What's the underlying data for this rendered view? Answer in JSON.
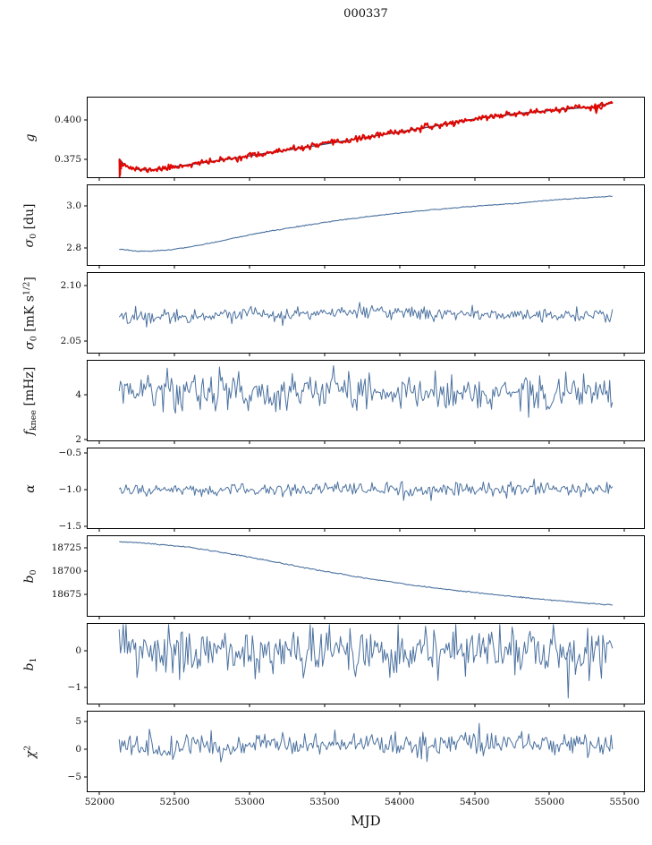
{
  "title": "000337",
  "xlabel": "MJD",
  "colors": {
    "line_blue": "#4c72a0",
    "fit_navy": "#2e4a6e",
    "overlay_red": "#e10600",
    "axis": "#000000"
  },
  "chart_data": {
    "type": "line",
    "title": "000337",
    "xlabel": "MJD",
    "grid": false,
    "legend": "none",
    "xlim": [
      51920,
      55630
    ],
    "x_data_range": [
      52130,
      55420
    ],
    "xticks": [
      52000,
      52500,
      53000,
      53500,
      54000,
      54500,
      55000,
      55500
    ],
    "xtick_labels": [
      "52000",
      "52500",
      "53000",
      "53500",
      "54000",
      "54500",
      "55000",
      "55500"
    ],
    "panels": [
      {
        "id": "g",
        "ylabel_text": "g",
        "ylabel_segments": [
          {
            "t": "g",
            "it": true
          }
        ],
        "ylim": [
          0.364,
          0.414
        ],
        "yticks": [
          {
            "v": 0.4,
            "label": "0.400"
          },
          {
            "v": 0.375,
            "label": "0.375"
          }
        ],
        "series": [
          {
            "name": "g-fit",
            "type": "smooth",
            "color": "#2e4a6e",
            "width": 1.4,
            "points": [
              [
                52130,
                0.3757
              ],
              [
                52155,
                0.3728
              ],
              [
                52185,
                0.3707
              ],
              [
                52230,
                0.3692
              ],
              [
                52290,
                0.3686
              ],
              [
                52360,
                0.3688
              ],
              [
                52440,
                0.3697
              ],
              [
                52530,
                0.371
              ],
              [
                52650,
                0.3726
              ],
              [
                52800,
                0.3746
              ],
              [
                52950,
                0.3767
              ],
              [
                53100,
                0.3789
              ],
              [
                53250,
                0.381
              ],
              [
                53400,
                0.3832
              ],
              [
                53550,
                0.3855
              ],
              [
                53700,
                0.3878
              ],
              [
                53850,
                0.3902
              ],
              [
                54000,
                0.3925
              ],
              [
                54150,
                0.3948
              ],
              [
                54300,
                0.3972
              ],
              [
                54450,
                0.3998
              ],
              [
                54600,
                0.402
              ],
              [
                54750,
                0.4036
              ],
              [
                54900,
                0.4049
              ],
              [
                55050,
                0.4063
              ],
              [
                55200,
                0.4075
              ],
              [
                55300,
                0.4082
              ],
              [
                55420,
                0.4107
              ]
            ]
          },
          {
            "name": "g-data",
            "type": "noisy",
            "color": "#e10600",
            "width": 2,
            "seed": 11,
            "n": 430,
            "std": 0.0009,
            "clamp": [
              0.3632,
              0.4125
            ],
            "trend": [
              [
                52130,
                0.3757
              ],
              [
                52155,
                0.3728
              ],
              [
                52185,
                0.3707
              ],
              [
                52230,
                0.3692
              ],
              [
                52290,
                0.3686
              ],
              [
                52360,
                0.3688
              ],
              [
                52440,
                0.3697
              ],
              [
                52530,
                0.371
              ],
              [
                52650,
                0.3726
              ],
              [
                52800,
                0.3746
              ],
              [
                52950,
                0.3767
              ],
              [
                53100,
                0.3789
              ],
              [
                53250,
                0.381
              ],
              [
                53400,
                0.3832
              ],
              [
                53550,
                0.3855
              ],
              [
                53700,
                0.3878
              ],
              [
                53850,
                0.3902
              ],
              [
                54000,
                0.3925
              ],
              [
                54150,
                0.3948
              ],
              [
                54300,
                0.3972
              ],
              [
                54450,
                0.3998
              ],
              [
                54600,
                0.402
              ],
              [
                54750,
                0.4036
              ],
              [
                54900,
                0.4049
              ],
              [
                55050,
                0.4063
              ],
              [
                55200,
                0.4075
              ],
              [
                55300,
                0.4082
              ],
              [
                55420,
                0.4107
              ]
            ]
          },
          {
            "name": "g-start-spike",
            "type": "spike",
            "color": "#e10600",
            "width": 1.8,
            "points": [
              [
                52131,
                0.3755
              ],
              [
                52133,
                0.3638
              ],
              [
                52135,
                0.3748
              ],
              [
                52137,
                0.3655
              ],
              [
                52140,
                0.3735
              ],
              [
                52144,
                0.369
              ]
            ]
          },
          {
            "name": "g-end-dip",
            "type": "spike",
            "color": "#e10600",
            "width": 1.8,
            "points": [
              [
                55300,
                0.4085
              ],
              [
                55312,
                0.4042
              ],
              [
                55324,
                0.4087
              ],
              [
                55345,
                0.4068
              ],
              [
                55360,
                0.4095
              ]
            ]
          }
        ]
      },
      {
        "id": "sigma0_du",
        "ylabel_text": "σ0 [du]",
        "ylabel_segments": [
          {
            "t": "σ",
            "it": true
          },
          {
            "t": "0",
            "sub": true
          },
          {
            "t": " [du]"
          }
        ],
        "ylim": [
          2.72,
          3.1
        ],
        "yticks": [
          {
            "v": 3.0,
            "label": "3.0"
          },
          {
            "v": 2.8,
            "label": "2.8"
          }
        ],
        "series": [
          {
            "name": "sigma0-du",
            "type": "noisy",
            "color": "#4c72a0",
            "width": 1.1,
            "seed": 21,
            "n": 400,
            "std": 0.0012,
            "clamp": [
              2.73,
              3.09
            ],
            "trend": [
              [
                52130,
                2.796
              ],
              [
                52250,
                2.786
              ],
              [
                52350,
                2.785
              ],
              [
                52500,
                2.795
              ],
              [
                52650,
                2.812
              ],
              [
                52800,
                2.833
              ],
              [
                53000,
                2.864
              ],
              [
                53200,
                2.889
              ],
              [
                53400,
                2.912
              ],
              [
                53600,
                2.933
              ],
              [
                53800,
                2.952
              ],
              [
                54000,
                2.968
              ],
              [
                54200,
                2.982
              ],
              [
                54400,
                2.995
              ],
              [
                54600,
                3.005
              ],
              [
                54800,
                3.015
              ],
              [
                55000,
                3.029
              ],
              [
                55200,
                3.038
              ],
              [
                55420,
                3.048
              ]
            ]
          }
        ]
      },
      {
        "id": "sigma0_mk",
        "ylabel_text": "σ0 [mK s1/2]",
        "ylabel_segments": [
          {
            "t": "σ",
            "it": true
          },
          {
            "t": "0",
            "sub": true
          },
          {
            "t": " [mK s"
          },
          {
            "t": "1/2",
            "sup": true
          },
          {
            "t": "]"
          }
        ],
        "ylim": [
          2.04,
          2.111
        ],
        "yticks": [
          {
            "v": 2.1,
            "label": "2.10"
          },
          {
            "v": 2.05,
            "label": "2.05"
          }
        ],
        "series": [
          {
            "name": "sigma0-mk",
            "type": "noisy",
            "color": "#4c72a0",
            "width": 1,
            "seed": 22,
            "n": 360,
            "std": 0.003,
            "clamp": [
              2.059,
              2.091
            ],
            "trend": [
              [
                52130,
                2.0715
              ],
              [
                52500,
                2.073
              ],
              [
                52900,
                2.0738
              ],
              [
                53400,
                2.0744
              ],
              [
                53800,
                2.0768
              ],
              [
                54000,
                2.0752
              ],
              [
                54500,
                2.0742
              ],
              [
                55000,
                2.074
              ],
              [
                55420,
                2.0724
              ]
            ]
          }
        ]
      },
      {
        "id": "fknee",
        "ylabel_text": "fknee [mHz]",
        "ylabel_segments": [
          {
            "t": "f",
            "it": true
          },
          {
            "t": "knee",
            "sub": true
          },
          {
            "t": " [mHz]"
          }
        ],
        "ylim": [
          1.96,
          5.5
        ],
        "yticks": [
          {
            "v": 4,
            "label": "4"
          },
          {
            "v": 2,
            "label": "2"
          }
        ],
        "series": [
          {
            "name": "fknee",
            "type": "noisy",
            "color": "#4c72a0",
            "width": 1,
            "seed": 33,
            "n": 360,
            "std": 0.42,
            "clamp": [
              2.5,
              5.45
            ],
            "trend": [
              [
                52130,
                4.18
              ],
              [
                53000,
                4.1
              ],
              [
                54000,
                4.12
              ],
              [
                55420,
                4.02
              ]
            ]
          }
        ]
      },
      {
        "id": "alpha",
        "ylabel_text": "α",
        "ylabel_segments": [
          {
            "t": "α",
            "it": true
          }
        ],
        "ylim": [
          -1.52,
          -0.44
        ],
        "yticks": [
          {
            "v": -0.5,
            "label": "−0.5"
          },
          {
            "v": -1.0,
            "label": "−1.0"
          },
          {
            "v": -1.5,
            "label": "−1.5"
          }
        ],
        "series": [
          {
            "name": "alpha",
            "type": "noisy",
            "color": "#4c72a0",
            "width": 1,
            "seed": 44,
            "n": 360,
            "std": 0.045,
            "clamp": [
              -1.2,
              -0.8
            ],
            "trend": [
              [
                52130,
                -1.005
              ],
              [
                55420,
                -1.0
              ]
            ]
          }
        ]
      },
      {
        "id": "b0",
        "ylabel_text": "b0",
        "ylabel_segments": [
          {
            "t": "b",
            "it": true
          },
          {
            "t": "0",
            "sub": true
          }
        ],
        "ylim": [
          18652,
          18737
        ],
        "yticks": [
          {
            "v": 18725,
            "label": "18725"
          },
          {
            "v": 18700,
            "label": "18700"
          },
          {
            "v": 18675,
            "label": "18675"
          }
        ],
        "series": [
          {
            "name": "b0",
            "type": "noisy",
            "color": "#4c72a0",
            "width": 1.1,
            "seed": 55,
            "n": 400,
            "std": 0.3,
            "clamp": [
              18652,
              18737
            ],
            "trend": [
              [
                52130,
                18731
              ],
              [
                52300,
                18729.5
              ],
              [
                52450,
                18727.5
              ],
              [
                52600,
                18725
              ],
              [
                52750,
                18721.5
              ],
              [
                52900,
                18717.5
              ],
              [
                53050,
                18713
              ],
              [
                53200,
                18708.5
              ],
              [
                53350,
                18704
              ],
              [
                53500,
                18699.5
              ],
              [
                53650,
                18695.5
              ],
              [
                53800,
                18691.5
              ],
              [
                53950,
                18688
              ],
              [
                54100,
                18684.5
              ],
              [
                54300,
                18680.5
              ],
              [
                54500,
                18677
              ],
              [
                54700,
                18673.5
              ],
              [
                54900,
                18670.5
              ],
              [
                55100,
                18667.5
              ],
              [
                55250,
                18665.5
              ],
              [
                55420,
                18663.5
              ]
            ]
          }
        ]
      },
      {
        "id": "b1",
        "ylabel_text": "b1",
        "ylabel_segments": [
          {
            "t": "b",
            "it": true
          },
          {
            "t": "1",
            "sub": true
          }
        ],
        "ylim": [
          -1.45,
          0.72
        ],
        "yticks": [
          {
            "v": 0,
            "label": "0"
          },
          {
            "v": -1,
            "label": "−1"
          }
        ],
        "series": [
          {
            "name": "b1",
            "type": "noisy",
            "color": "#4c72a0",
            "width": 1,
            "seed": 66,
            "n": 360,
            "std": 0.3,
            "clamp": [
              -1.33,
              0.7
            ],
            "trend": [
              [
                52130,
                -0.02
              ],
              [
                55420,
                0.0
              ]
            ]
          },
          {
            "name": "b1-spike",
            "type": "spike",
            "color": "#4c72a0",
            "width": 1,
            "points": [
              [
                55115,
                -0.05
              ],
              [
                55125,
                -1.3
              ],
              [
                55135,
                0.02
              ]
            ]
          }
        ]
      },
      {
        "id": "chi2",
        "ylabel_text": "χ2",
        "ylabel_segments": [
          {
            "t": "χ",
            "it": true
          },
          {
            "t": "2",
            "sup": true
          }
        ],
        "ylim": [
          -7.5,
          6.8
        ],
        "yticks": [
          {
            "v": 5,
            "label": "5"
          },
          {
            "v": 0,
            "label": "0"
          },
          {
            "v": -5,
            "label": "−5"
          }
        ],
        "series": [
          {
            "name": "chi2",
            "type": "noisy",
            "color": "#4c72a0",
            "width": 1,
            "seed": 77,
            "n": 360,
            "std": 1.1,
            "clamp": [
              -3.5,
              4.7
            ],
            "trend": [
              [
                52130,
                0.45
              ],
              [
                53000,
                0.7
              ],
              [
                54200,
                1.0
              ],
              [
                55420,
                1.15
              ]
            ]
          }
        ]
      }
    ]
  }
}
